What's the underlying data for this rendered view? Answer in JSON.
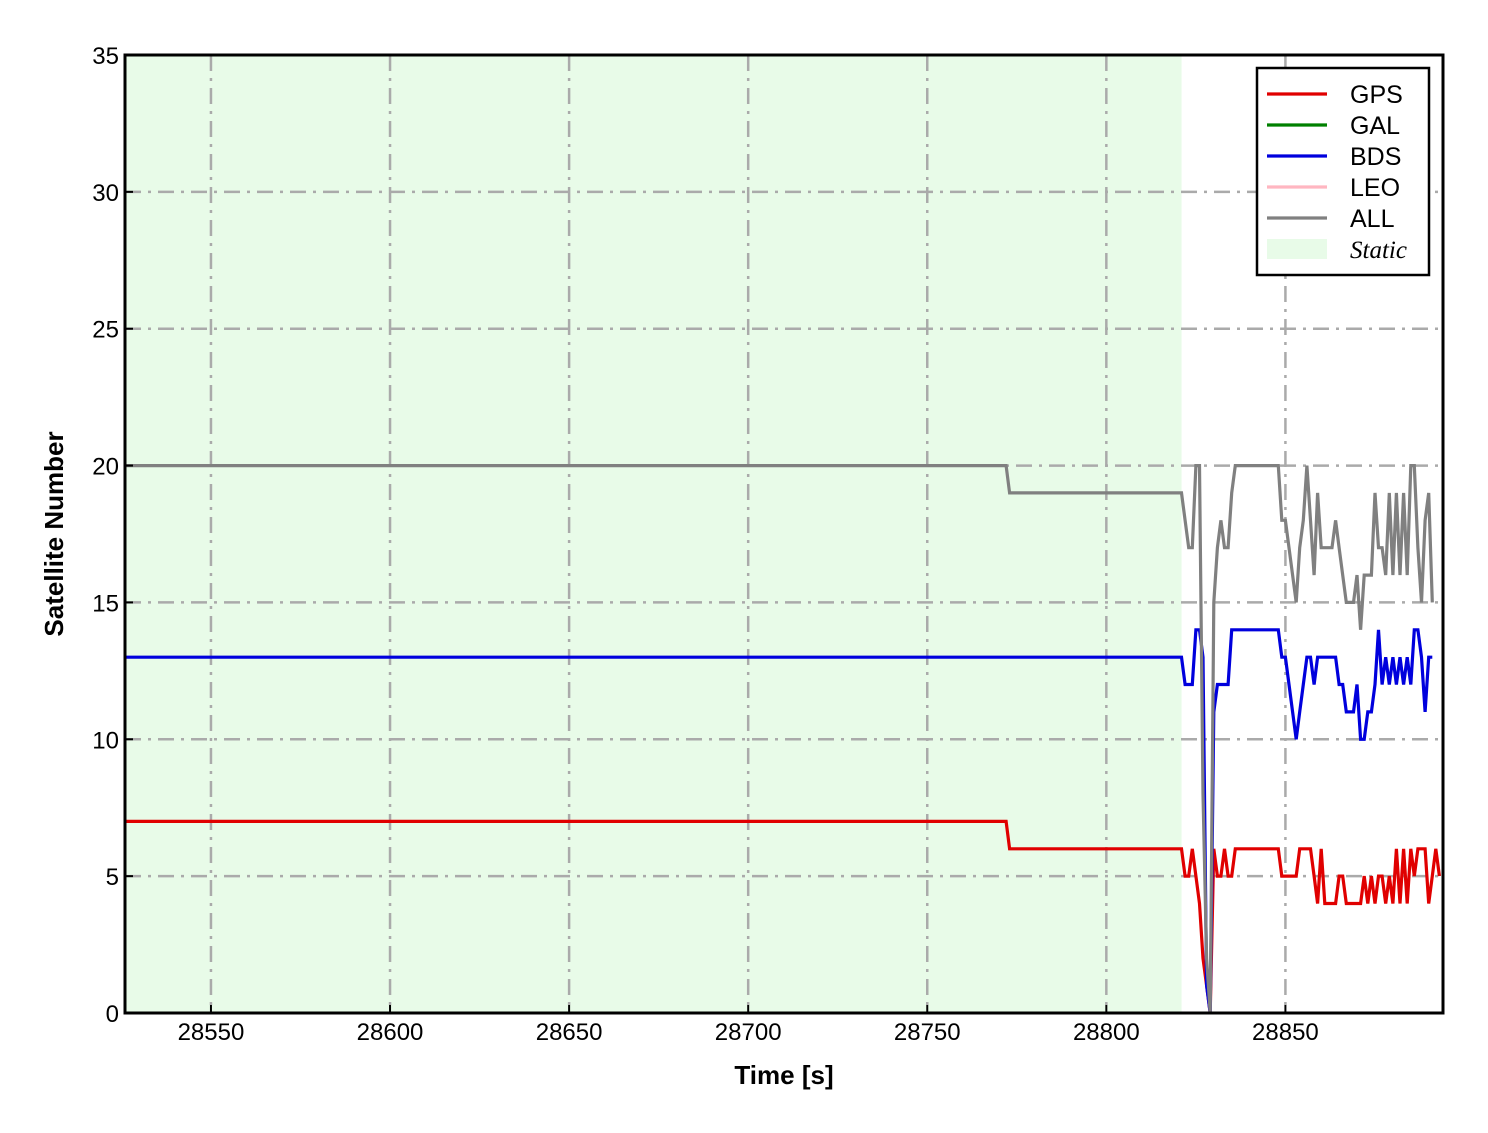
{
  "chart_data": {
    "type": "line",
    "xlabel": "Time [s]",
    "ylabel": "Satellite Number",
    "xlim": [
      28526,
      28894
    ],
    "ylim": [
      0,
      35
    ],
    "xticks": [
      28550,
      28600,
      28650,
      28700,
      28750,
      28800,
      28850
    ],
    "yticks": [
      0,
      5,
      10,
      15,
      20,
      25,
      30,
      35
    ],
    "grid": true,
    "grid_style": "dash-dot",
    "legend_position": "top-right",
    "static_region": {
      "label": "Static",
      "x_start": 28526,
      "x_end": 28821,
      "color": "#e8fbe8"
    },
    "series": [
      {
        "name": "GPS",
        "color": "#e00000",
        "points": [
          [
            28526,
            7
          ],
          [
            28772,
            7
          ],
          [
            28773,
            6
          ],
          [
            28821,
            6
          ],
          [
            28822,
            5
          ],
          [
            28823,
            5
          ],
          [
            28824,
            6
          ],
          [
            28825,
            5
          ],
          [
            28826,
            4
          ],
          [
            28827,
            2
          ],
          [
            28828,
            1
          ],
          [
            28829,
            0
          ],
          [
            28830,
            6
          ],
          [
            28831,
            5
          ],
          [
            28832,
            5
          ],
          [
            28833,
            6
          ],
          [
            28834,
            5
          ],
          [
            28835,
            5
          ],
          [
            28836,
            6
          ],
          [
            28848,
            6
          ],
          [
            28849,
            5
          ],
          [
            28853,
            5
          ],
          [
            28854,
            6
          ],
          [
            28857,
            6
          ],
          [
            28858,
            5
          ],
          [
            28859,
            4
          ],
          [
            28860,
            6
          ],
          [
            28861,
            4
          ],
          [
            28864,
            4
          ],
          [
            28865,
            5
          ],
          [
            28866,
            5
          ],
          [
            28867,
            4
          ],
          [
            28871,
            4
          ],
          [
            28872,
            5
          ],
          [
            28873,
            4
          ],
          [
            28874,
            5
          ],
          [
            28875,
            4
          ],
          [
            28876,
            5
          ],
          [
            28877,
            5
          ],
          [
            28878,
            4
          ],
          [
            28879,
            5
          ],
          [
            28880,
            4
          ],
          [
            28881,
            6
          ],
          [
            28882,
            4
          ],
          [
            28883,
            6
          ],
          [
            28884,
            4
          ],
          [
            28885,
            6
          ],
          [
            28886,
            5
          ],
          [
            28887,
            6
          ],
          [
            28889,
            6
          ],
          [
            28890,
            4
          ],
          [
            28891,
            5
          ],
          [
            28892,
            6
          ],
          [
            28893,
            5
          ]
        ]
      },
      {
        "name": "GAL",
        "color": "#008000",
        "points": []
      },
      {
        "name": "BDS",
        "color": "#0000dd",
        "points": [
          [
            28526,
            13
          ],
          [
            28821,
            13
          ],
          [
            28822,
            12
          ],
          [
            28824,
            12
          ],
          [
            28825,
            14
          ],
          [
            28826,
            14
          ],
          [
            28827,
            13
          ],
          [
            28828,
            1
          ],
          [
            28829,
            0
          ],
          [
            28830,
            11
          ],
          [
            28831,
            12
          ],
          [
            28834,
            12
          ],
          [
            28835,
            14
          ],
          [
            28848,
            14
          ],
          [
            28849,
            13
          ],
          [
            28850,
            13
          ],
          [
            28851,
            12
          ],
          [
            28852,
            11
          ],
          [
            28853,
            10
          ],
          [
            28854,
            11
          ],
          [
            28855,
            12
          ],
          [
            28856,
            13
          ],
          [
            28857,
            13
          ],
          [
            28858,
            12
          ],
          [
            28859,
            13
          ],
          [
            28864,
            13
          ],
          [
            28865,
            12
          ],
          [
            28866,
            12
          ],
          [
            28867,
            11
          ],
          [
            28869,
            11
          ],
          [
            28870,
            12
          ],
          [
            28871,
            10
          ],
          [
            28872,
            10
          ],
          [
            28873,
            11
          ],
          [
            28874,
            11
          ],
          [
            28875,
            12
          ],
          [
            28876,
            14
          ],
          [
            28877,
            12
          ],
          [
            28878,
            13
          ],
          [
            28879,
            12
          ],
          [
            28880,
            13
          ],
          [
            28881,
            12
          ],
          [
            28882,
            13
          ],
          [
            28883,
            12
          ],
          [
            28884,
            13
          ],
          [
            28885,
            12
          ],
          [
            28886,
            14
          ],
          [
            28887,
            14
          ],
          [
            28888,
            13
          ],
          [
            28889,
            11
          ],
          [
            28890,
            13
          ],
          [
            28891,
            13
          ]
        ]
      },
      {
        "name": "LEO",
        "color": "#ffb6c1",
        "points": []
      },
      {
        "name": "ALL",
        "color": "#808080",
        "points": [
          [
            28526,
            20
          ],
          [
            28772,
            20
          ],
          [
            28773,
            19
          ],
          [
            28821,
            19
          ],
          [
            28822,
            18
          ],
          [
            28823,
            17
          ],
          [
            28824,
            17
          ],
          [
            28825,
            20
          ],
          [
            28826,
            20
          ],
          [
            28827,
            8
          ],
          [
            28828,
            2
          ],
          [
            28829,
            0
          ],
          [
            28830,
            15
          ],
          [
            28831,
            17
          ],
          [
            28832,
            18
          ],
          [
            28833,
            17
          ],
          [
            28834,
            17
          ],
          [
            28835,
            19
          ],
          [
            28836,
            20
          ],
          [
            28848,
            20
          ],
          [
            28849,
            18
          ],
          [
            28850,
            18
          ],
          [
            28851,
            17
          ],
          [
            28852,
            16
          ],
          [
            28853,
            15
          ],
          [
            28854,
            17
          ],
          [
            28855,
            18
          ],
          [
            28856,
            20
          ],
          [
            28857,
            18
          ],
          [
            28858,
            16
          ],
          [
            28859,
            19
          ],
          [
            28860,
            17
          ],
          [
            28863,
            17
          ],
          [
            28864,
            18
          ],
          [
            28865,
            17
          ],
          [
            28867,
            15
          ],
          [
            28869,
            15
          ],
          [
            28870,
            16
          ],
          [
            28871,
            14
          ],
          [
            28872,
            16
          ],
          [
            28874,
            16
          ],
          [
            28875,
            19
          ],
          [
            28876,
            17
          ],
          [
            28877,
            17
          ],
          [
            28878,
            16
          ],
          [
            28879,
            19
          ],
          [
            28880,
            16
          ],
          [
            28881,
            19
          ],
          [
            28882,
            16
          ],
          [
            28883,
            19
          ],
          [
            28884,
            16
          ],
          [
            28885,
            20
          ],
          [
            28886,
            20
          ],
          [
            28887,
            17
          ],
          [
            28888,
            15
          ],
          [
            28889,
            18
          ],
          [
            28890,
            19
          ],
          [
            28891,
            15
          ]
        ]
      }
    ]
  }
}
